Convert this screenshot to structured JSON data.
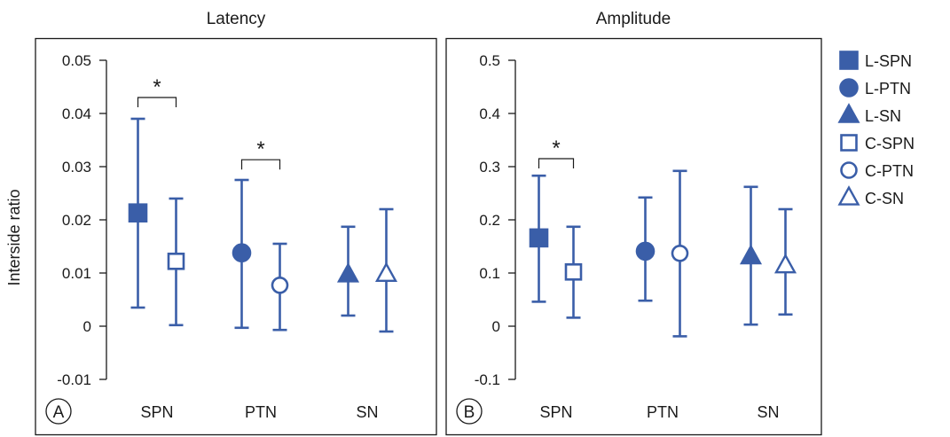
{
  "colors": {
    "series": "#3a5ea8",
    "axis": "#1a1a1a",
    "background": "#ffffff"
  },
  "y_axis_label": "Interside ratio",
  "legend": [
    "L-SPN",
    "L-PTN",
    "L-SN",
    "C-SPN",
    "C-PTN",
    "C-SN"
  ],
  "chart_data": [
    {
      "type": "scatter",
      "panel_label": "A",
      "title": "Latency",
      "ylabel": "Interside ratio",
      "categories": [
        "SPN",
        "PTN",
        "SN"
      ],
      "ylim": [
        -0.01,
        0.05
      ],
      "yticks": [
        -0.01,
        0,
        0.01,
        0.02,
        0.03,
        0.04,
        0.05
      ],
      "ytick_labels": [
        "-0.01",
        "0",
        "0.01",
        "0.02",
        "0.03",
        "0.04",
        "0.05"
      ],
      "series": [
        {
          "name": "L-SPN",
          "category": "SPN",
          "side": "L",
          "marker": "square",
          "filled": true,
          "mean": 0.0213,
          "lower": 0.0035,
          "upper": 0.039
        },
        {
          "name": "C-SPN",
          "category": "SPN",
          "side": "C",
          "marker": "square",
          "filled": false,
          "mean": 0.0122,
          "lower": 0.0002,
          "upper": 0.024
        },
        {
          "name": "L-PTN",
          "category": "PTN",
          "side": "L",
          "marker": "circle",
          "filled": true,
          "mean": 0.0138,
          "lower": -0.0003,
          "upper": 0.0275
        },
        {
          "name": "C-PTN",
          "category": "PTN",
          "side": "C",
          "marker": "circle",
          "filled": false,
          "mean": 0.0077,
          "lower": -0.0007,
          "upper": 0.0155
        },
        {
          "name": "L-SN",
          "category": "SN",
          "side": "L",
          "marker": "triangle",
          "filled": true,
          "mean": 0.0097,
          "lower": 0.002,
          "upper": 0.0187
        },
        {
          "name": "C-SN",
          "category": "SN",
          "side": "C",
          "marker": "triangle",
          "filled": false,
          "mean": 0.0098,
          "lower": -0.001,
          "upper": 0.022
        }
      ],
      "significance": [
        {
          "category": "SPN",
          "label": "*",
          "level": 0.043
        },
        {
          "category": "PTN",
          "label": "*",
          "level": 0.0313
        }
      ]
    },
    {
      "type": "scatter",
      "panel_label": "B",
      "title": "Amplitude",
      "ylabel": "",
      "categories": [
        "SPN",
        "PTN",
        "SN"
      ],
      "ylim": [
        -0.1,
        0.5
      ],
      "yticks": [
        -0.1,
        0,
        0.1,
        0.2,
        0.3,
        0.4,
        0.5
      ],
      "ytick_labels": [
        "-0.1",
        "0",
        "0.1",
        "0.2",
        "0.3",
        "0.4",
        "0.5"
      ],
      "series": [
        {
          "name": "L-SPN",
          "category": "SPN",
          "side": "L",
          "marker": "square",
          "filled": true,
          "mean": 0.166,
          "lower": 0.046,
          "upper": 0.283
        },
        {
          "name": "C-SPN",
          "category": "SPN",
          "side": "C",
          "marker": "square",
          "filled": false,
          "mean": 0.102,
          "lower": 0.016,
          "upper": 0.187
        },
        {
          "name": "L-PTN",
          "category": "PTN",
          "side": "L",
          "marker": "circle",
          "filled": true,
          "mean": 0.141,
          "lower": 0.048,
          "upper": 0.242
        },
        {
          "name": "C-PTN",
          "category": "PTN",
          "side": "C",
          "marker": "circle",
          "filled": false,
          "mean": 0.137,
          "lower": -0.019,
          "upper": 0.292
        },
        {
          "name": "L-SN",
          "category": "SN",
          "side": "L",
          "marker": "triangle",
          "filled": true,
          "mean": 0.131,
          "lower": 0.003,
          "upper": 0.262
        },
        {
          "name": "C-SN",
          "category": "SN",
          "side": "C",
          "marker": "triangle",
          "filled": false,
          "mean": 0.114,
          "lower": 0.022,
          "upper": 0.22
        }
      ],
      "significance": [
        {
          "category": "SPN",
          "label": "*",
          "level": 0.315
        }
      ]
    }
  ]
}
